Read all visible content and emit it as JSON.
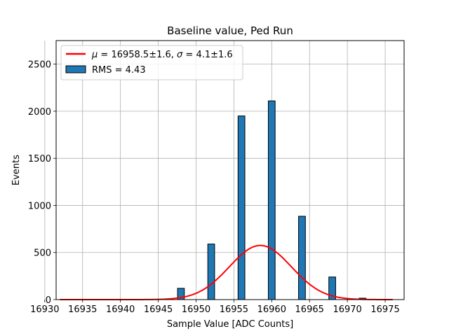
{
  "chart_data": {
    "type": "bar",
    "title": "Baseline value, Ped Run",
    "xlabel": "Sample Value [ADC Counts]",
    "ylabel": "Events",
    "xlim": [
      16931.5,
      16977.5
    ],
    "ylim": [
      0,
      2750
    ],
    "xticks": [
      16930,
      16935,
      16940,
      16945,
      16950,
      16955,
      16960,
      16965,
      16970,
      16975
    ],
    "yticks": [
      0,
      500,
      1000,
      1500,
      2000,
      2500
    ],
    "grid": true,
    "legend_position": "top-left",
    "histogram": {
      "name": "RMS = 4.43",
      "color": "#1f77b4",
      "edgecolor": "#000000",
      "bin_width": 0.9,
      "bins": [
        {
          "x": 16948,
          "count": 120
        },
        {
          "x": 16952,
          "count": 590
        },
        {
          "x": 16956,
          "count": 1950
        },
        {
          "x": 16960,
          "count": 2110
        },
        {
          "x": 16964,
          "count": 885
        },
        {
          "x": 16968,
          "count": 240
        },
        {
          "x": 16972,
          "count": 15
        }
      ]
    },
    "fit": {
      "name": "μ = 16958.5±1.6, σ = 4.1±1.6",
      "name_parts": {
        "mu_symbol": "μ",
        "mu_value": " = 16958.5±1.6, ",
        "sigma_symbol": "σ",
        "sigma_value": " = 4.1±1.6"
      },
      "color": "#ff0000",
      "function": "gaussian",
      "mu": 16958.5,
      "sigma": 4.1,
      "amplitude": 575,
      "x_range": [
        16932,
        16976
      ]
    }
  }
}
